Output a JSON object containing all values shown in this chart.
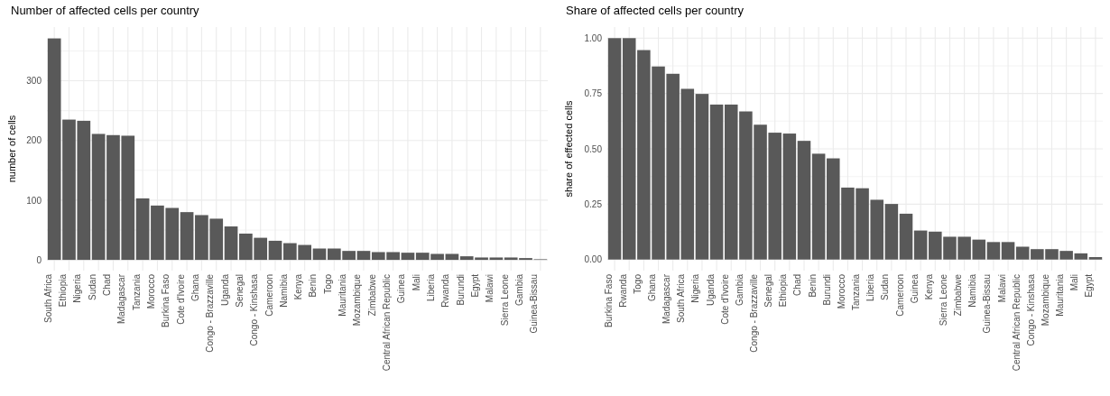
{
  "chart_data": [
    {
      "type": "bar",
      "title": "Number of affected cells per country",
      "ylabel": "number of cells",
      "categories": [
        "South Africa",
        "Ethiopia",
        "Nigeria",
        "Sudan",
        "Chad",
        "Madagascar",
        "Tanzania",
        "Morocco",
        "Burkina Faso",
        "Cote d'Ivoire",
        "Ghana",
        "Congo - Brazzaville",
        "Uganda",
        "Senegal",
        "Congo - Kinshasa",
        "Cameroon",
        "Namibia",
        "Kenya",
        "Benin",
        "Togo",
        "Mauritania",
        "Mozambique",
        "Zimbabwe",
        "Central African Republic",
        "Guinea",
        "Mali",
        "Liberia",
        "Rwanda",
        "Burundi",
        "Egypt",
        "Malawi",
        "Sierra Leone",
        "Gambia",
        "Guinea-Bissau"
      ],
      "values": [
        371,
        235,
        233,
        211,
        209,
        208,
        103,
        91,
        87,
        80,
        75,
        69,
        56,
        44,
        37,
        32,
        28,
        25,
        19,
        19,
        15,
        15,
        13,
        13,
        12,
        12,
        10,
        10,
        6,
        4,
        4,
        4,
        3,
        1
      ],
      "color": "#595959",
      "ylim": [
        -18,
        390
      ],
      "yticks": [
        0,
        {
          "value": 50,
          "label": null
        },
        100,
        {
          "value": 150,
          "label": null
        },
        200,
        {
          "value": 250,
          "label": null
        },
        300,
        {
          "value": 350,
          "label": null
        }
      ],
      "grid": true
    },
    {
      "type": "bar",
      "title": "Share of affected cells per country",
      "ylabel": "share of effected cells",
      "categories": [
        "Burkina Faso",
        "Rwanda",
        "Togo",
        "Ghana",
        "Madagascar",
        "South Africa",
        "Nigeria",
        "Uganda",
        "Cote d'Ivoire",
        "Gambia",
        "Congo - Brazzaville",
        "Senegal",
        "Ethiopia",
        "Chad",
        "Benin",
        "Burundi",
        "Morocco",
        "Tanzania",
        "Liberia",
        "Sudan",
        "Cameroon",
        "Guinea",
        "Kenya",
        "Sierra Leone",
        "Zimbabwe",
        "Namibia",
        "Guinea-Bissau",
        "Malawi",
        "Central African Republic",
        "Congo - Kinshasa",
        "Mozambique",
        "Mauritania",
        "Mali",
        "Egypt"
      ],
      "values": [
        1.0,
        1.0,
        0.946,
        0.872,
        0.839,
        0.771,
        0.748,
        0.7,
        0.7,
        0.669,
        0.609,
        0.573,
        0.569,
        0.536,
        0.478,
        0.457,
        0.325,
        0.322,
        0.27,
        0.251,
        0.207,
        0.131,
        0.126,
        0.103,
        0.103,
        0.09,
        0.079,
        0.079,
        0.058,
        0.047,
        0.047,
        0.039,
        0.028,
        0.011
      ],
      "color": "#595959",
      "ylim": [
        -0.05,
        1.05
      ],
      "yticks": [
        {
          "value": 0,
          "label": "0.00"
        },
        {
          "value": 0.125,
          "label": null
        },
        {
          "value": 0.25,
          "label": "0.25"
        },
        {
          "value": 0.375,
          "label": null
        },
        {
          "value": 0.5,
          "label": "0.50"
        },
        {
          "value": 0.625,
          "label": null
        },
        {
          "value": 0.75,
          "label": "0.75"
        },
        {
          "value": 0.875,
          "label": null
        },
        {
          "value": 1,
          "label": "1.00"
        }
      ],
      "grid": true
    }
  ]
}
